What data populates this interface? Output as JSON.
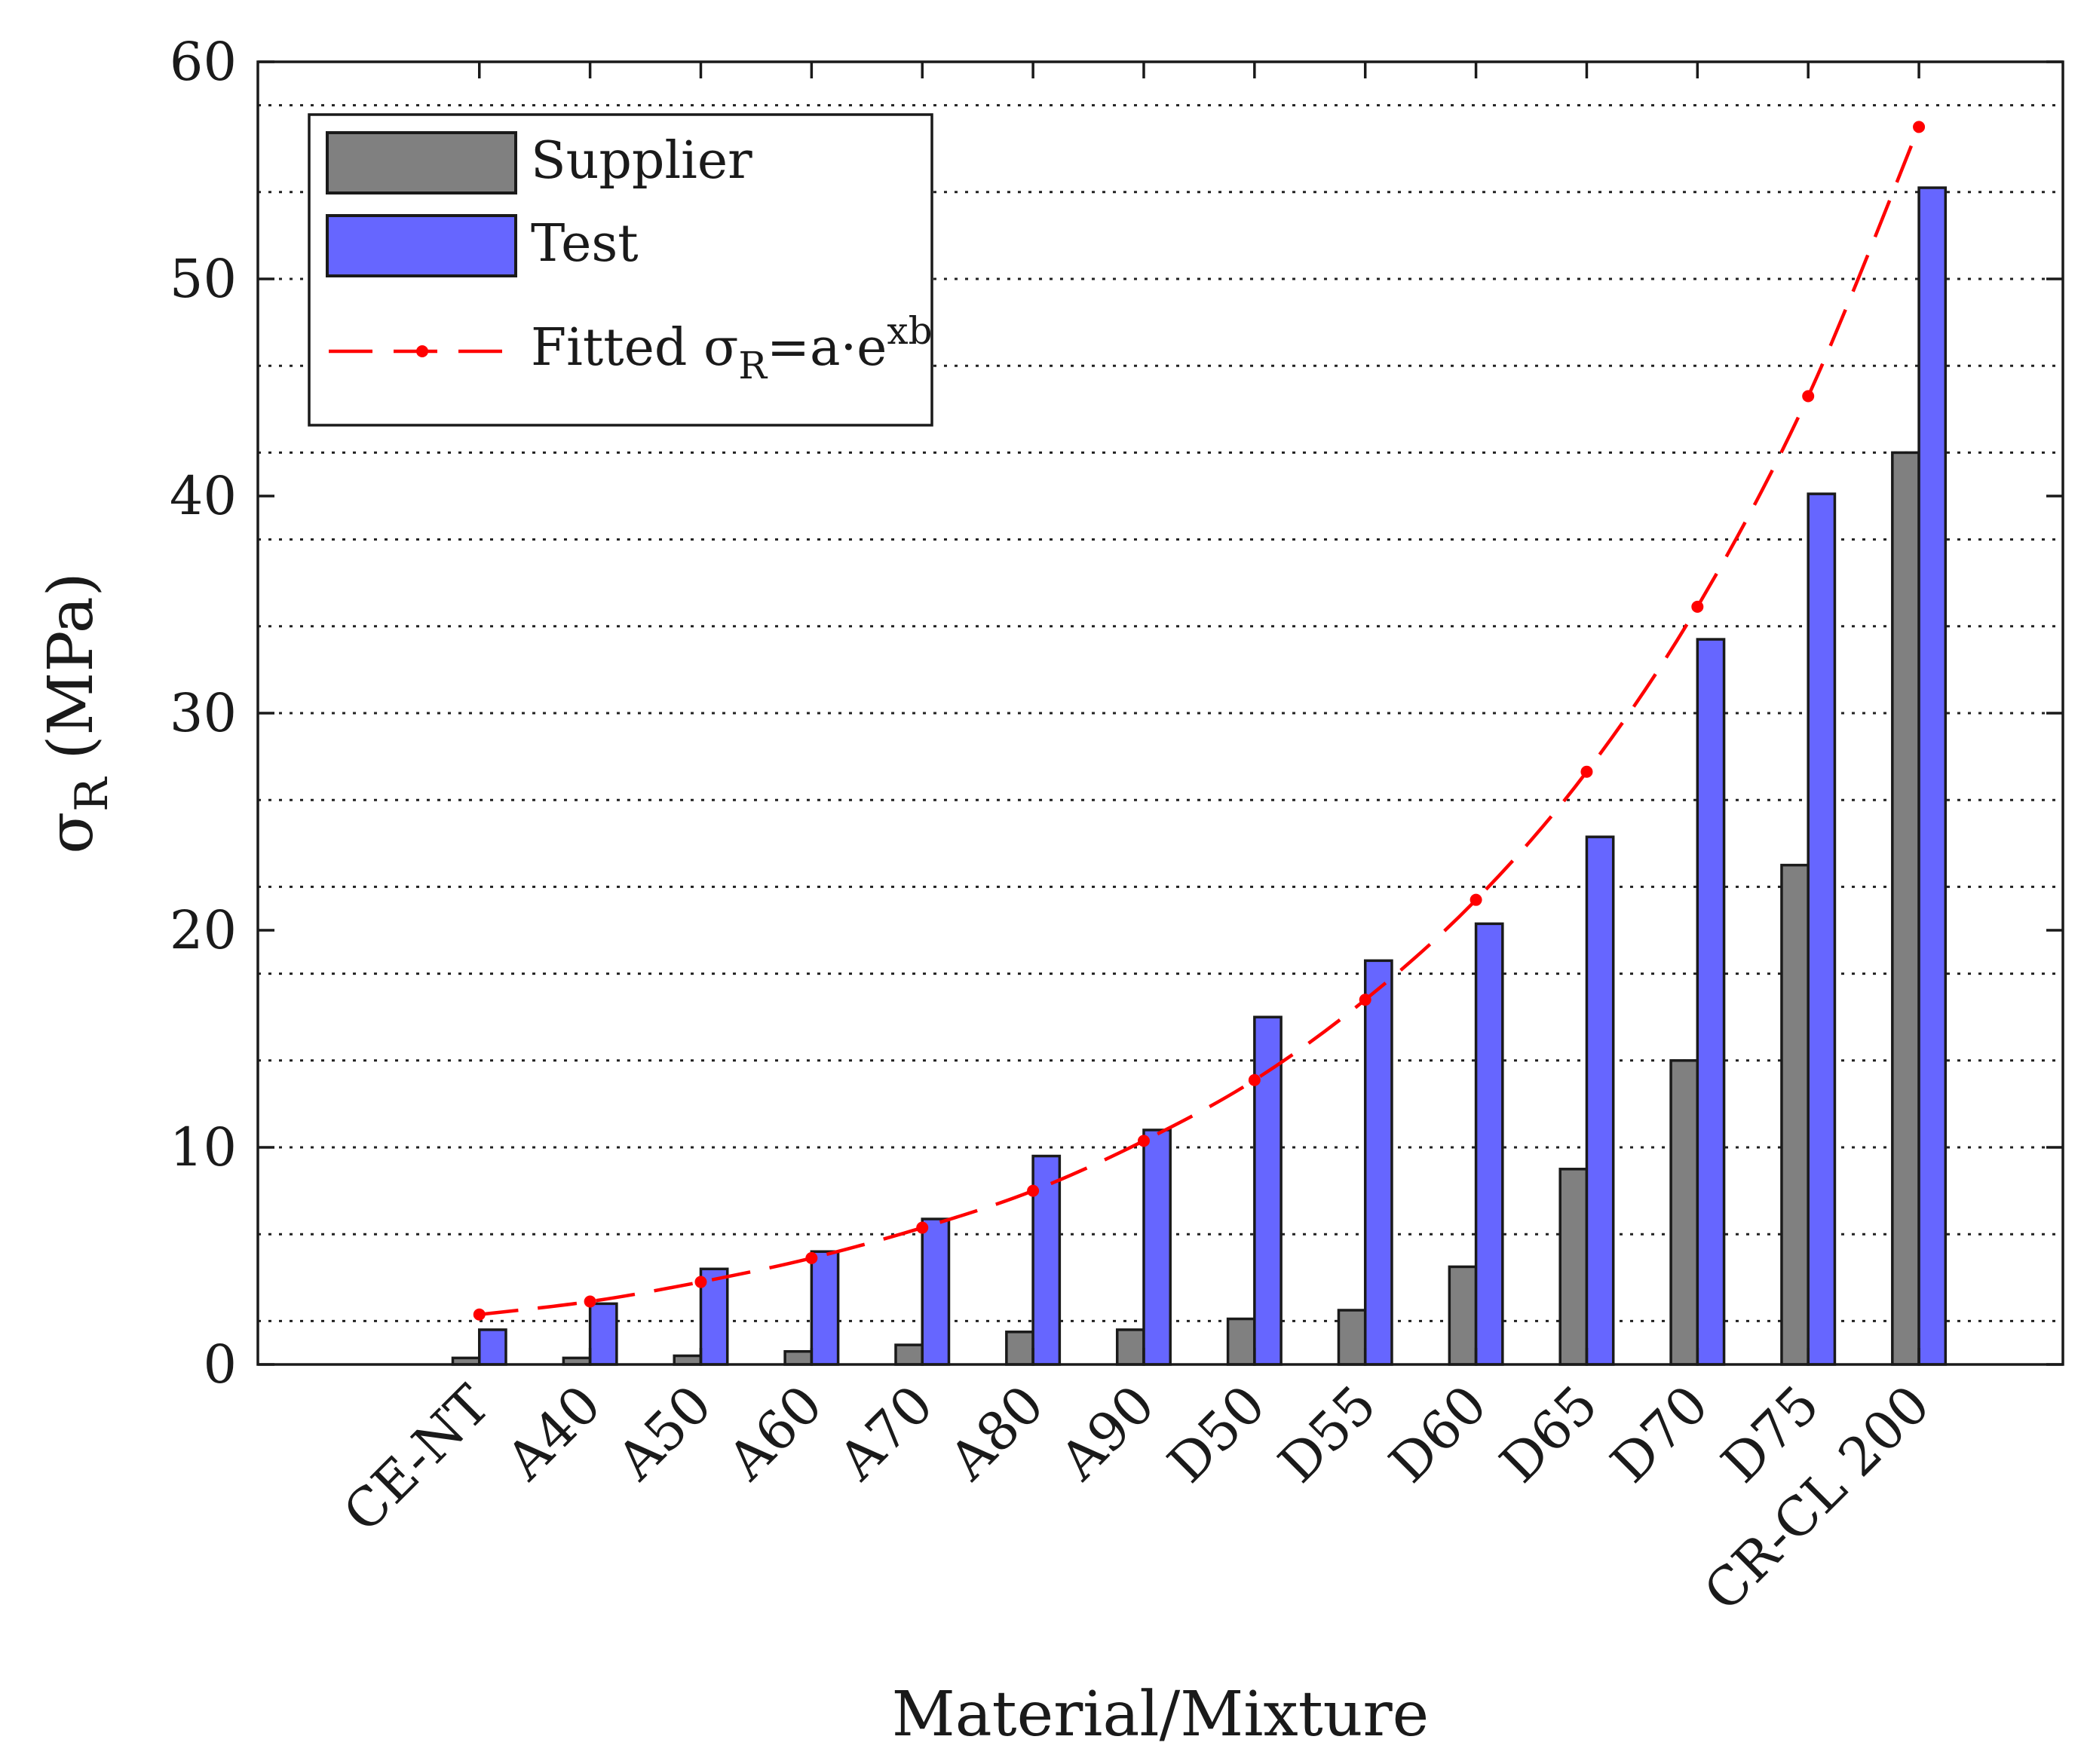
{
  "chart_data": {
    "type": "bar",
    "title": "",
    "xlabel": "Material/Mixture",
    "ylabel": {
      "symbol": "σ",
      "sub": "R",
      "unit": "(MPa)"
    },
    "ylim": [
      0,
      60
    ],
    "yticks": [
      "0",
      "10",
      "20",
      "30",
      "40",
      "50",
      "60"
    ],
    "categories": [
      "CE-NT",
      "A40",
      "A50",
      "A60",
      "A70",
      "A80",
      "A90",
      "D50",
      "D55",
      "D60",
      "D65",
      "D70",
      "D75",
      "CR-CL 200"
    ],
    "series": [
      {
        "name": "Supplier",
        "color": "#808080",
        "values": [
          0.3,
          0.3,
          0.4,
          0.6,
          0.9,
          1.5,
          1.6,
          2.1,
          2.5,
          4.5,
          9.0,
          14.0,
          23.0,
          42.0
        ]
      },
      {
        "name": "Test",
        "color": "#6666ff",
        "values": [
          1.6,
          2.8,
          4.4,
          5.2,
          6.7,
          9.6,
          10.8,
          16.0,
          18.6,
          20.3,
          24.3,
          33.4,
          40.1,
          54.2
        ]
      }
    ],
    "fit": {
      "name": "Fitted",
      "legend_parts": {
        "prefix": "Fitted ",
        "symbol": "σ",
        "sub": "R",
        "eq": "=a·e",
        "sup": "xb"
      },
      "color": "#ff0000",
      "values": [
        2.3,
        2.9,
        3.8,
        4.9,
        6.3,
        8.0,
        10.3,
        13.1,
        16.8,
        21.4,
        27.3,
        34.9,
        44.6,
        57.0
      ]
    },
    "legend_position": "top-left",
    "grid": true
  }
}
